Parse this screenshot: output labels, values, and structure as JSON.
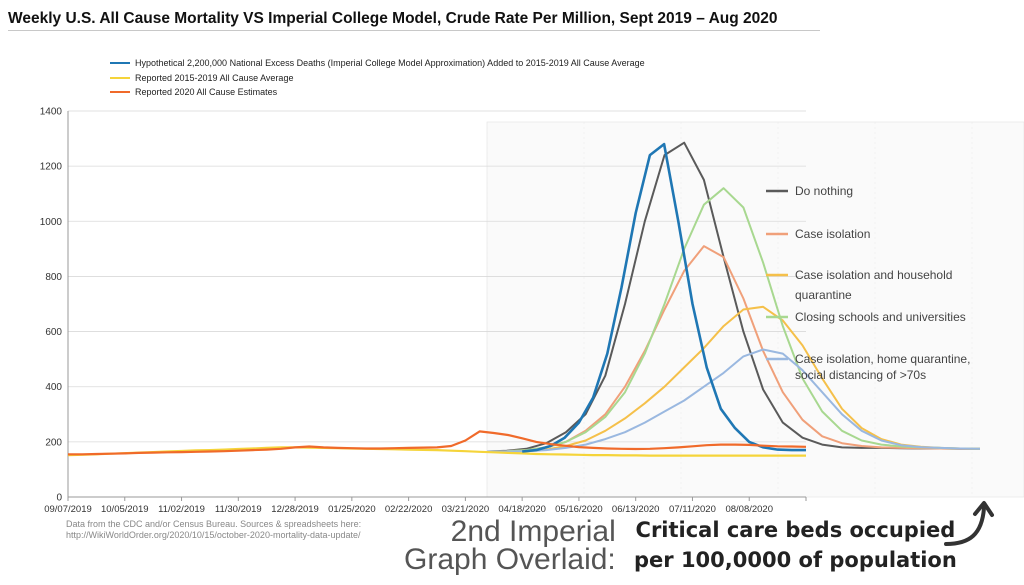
{
  "title": "Weekly U.S. All Cause Mortality VS Imperial College Model, Crude Rate Per Million, Sept 2019 – Aug 2020",
  "legend": [
    {
      "label": "Hypothetical 2,200,000 National Excess Deaths (Imperial College Model Approximation) Added to 2015-2019 All Cause Average",
      "color": "#1f77b4"
    },
    {
      "label": "Reported 2015-2019 All Cause Average",
      "color": "#f5d43a"
    },
    {
      "label": "Reported 2020 All Cause Estimates",
      "color": "#f06a2a"
    }
  ],
  "source": {
    "line1": "Data from the CDC and/or Census Bureau. Sources & spreadsheets here:",
    "line2": "http://WikiWorldOrder.org/2020/10/15/october-2020-mortality-data-update/"
  },
  "overlay_caption": {
    "line1": "2nd Imperial",
    "line2": "Graph Overlaid:"
  },
  "beds_caption": {
    "line1": "Critical care beds occupied",
    "line2": "per 100,0000 of population"
  },
  "arrow_icon": "curved-arrow-up-icon",
  "chart_data": [
    {
      "type": "line",
      "title": "Weekly U.S. All Cause Mortality VS Imperial College Model, Crude Rate Per Million, Sept 2019 – Aug 2020",
      "ylim": [
        0,
        1400
      ],
      "yticks": [
        0,
        200,
        400,
        600,
        800,
        1000,
        1200,
        1400
      ],
      "x_labels": [
        "09/07/2019",
        "10/05/2019",
        "11/02/2019",
        "11/30/2019",
        "12/28/2019",
        "01/25/2020",
        "02/22/2020",
        "03/21/2020",
        "04/18/2020",
        "05/16/2020",
        "06/13/2020",
        "07/11/2020",
        "08/08/2020"
      ],
      "grid": true,
      "legend_position": "top",
      "series": [
        {
          "name": "Reported 2015-2019 All Cause Average",
          "color": "#f5d43a",
          "values": [
            152,
            153,
            155,
            157,
            159,
            161,
            163,
            165,
            167,
            169,
            170,
            172,
            174,
            176,
            178,
            180,
            180,
            179,
            178,
            177,
            176,
            175,
            174,
            173,
            172,
            171,
            170,
            168,
            166,
            164,
            162,
            160,
            158,
            156,
            155,
            154,
            153,
            152,
            152,
            151,
            151,
            150,
            150,
            150,
            150,
            150,
            150,
            150,
            150,
            150,
            150,
            150,
            150
          ]
        },
        {
          "name": "Reported 2020 All Cause Estimates",
          "color": "#f06a2a",
          "values": [
            155,
            155,
            156,
            157,
            158,
            160,
            161,
            162,
            163,
            164,
            165,
            166,
            168,
            170,
            172,
            175,
            180,
            183,
            180,
            178,
            177,
            176,
            176,
            177,
            178,
            179,
            180,
            185,
            205,
            238,
            232,
            225,
            213,
            200,
            192,
            186,
            181,
            178,
            176,
            175,
            174,
            175,
            177,
            180,
            184,
            188,
            190,
            190,
            189,
            186,
            184,
            183,
            182
          ]
        },
        {
          "name": "Hypothetical 2,200,000 National Excess Deaths (Imperial College Model Approximation) Added to 2015-2019 All Cause Average",
          "color": "#1f77b4",
          "values": [
            null,
            null,
            null,
            null,
            null,
            null,
            null,
            null,
            null,
            null,
            null,
            null,
            null,
            null,
            null,
            null,
            null,
            null,
            null,
            null,
            null,
            null,
            null,
            null,
            null,
            null,
            null,
            null,
            null,
            null,
            null,
            null,
            165,
            170,
            185,
            215,
            270,
            360,
            520,
            760,
            1030,
            1240,
            1280,
            1000,
            700,
            470,
            320,
            250,
            200,
            180,
            172,
            170,
            170
          ]
        }
      ]
    },
    {
      "type": "line",
      "title": "",
      "ylabel": "Critical care beds occupied per 100,0000 of population",
      "legend_position": "right",
      "series": [
        {
          "name": "Do nothing",
          "color": "#5a5a5a",
          "values": [
            165,
            168,
            175,
            195,
            235,
            300,
            440,
            700,
            1000,
            1240,
            1285,
            1150,
            870,
            600,
            390,
            270,
            215,
            190,
            180,
            178,
            178,
            177,
            176,
            176,
            175,
            175
          ]
        },
        {
          "name": "Case isolation",
          "color": "#f0a07a",
          "values": [
            165,
            166,
            170,
            180,
            200,
            240,
            300,
            400,
            530,
            680,
            820,
            910,
            870,
            720,
            530,
            380,
            280,
            220,
            195,
            185,
            180,
            178,
            177,
            176,
            175,
            175
          ]
        },
        {
          "name": "Case isolation and household quarantine",
          "color": "#f5c04a",
          "values": [
            165,
            165,
            167,
            172,
            185,
            205,
            240,
            285,
            340,
            400,
            470,
            540,
            620,
            680,
            690,
            640,
            550,
            430,
            320,
            250,
            210,
            190,
            182,
            178,
            176,
            175
          ]
        },
        {
          "name": "Closing schools and universities",
          "color": "#a8d890",
          "values": [
            165,
            166,
            170,
            180,
            200,
            235,
            290,
            380,
            520,
            700,
            900,
            1060,
            1120,
            1050,
            850,
            620,
            430,
            310,
            240,
            205,
            190,
            183,
            180,
            178,
            176,
            175
          ]
        },
        {
          "name": "Case isolation, home quarantine, social distancing of >70s",
          "color": "#9ab8e0",
          "values": [
            165,
            165,
            166,
            170,
            178,
            190,
            210,
            235,
            270,
            310,
            350,
            400,
            450,
            510,
            535,
            520,
            460,
            380,
            300,
            240,
            205,
            188,
            181,
            178,
            176,
            175
          ]
        }
      ]
    }
  ]
}
